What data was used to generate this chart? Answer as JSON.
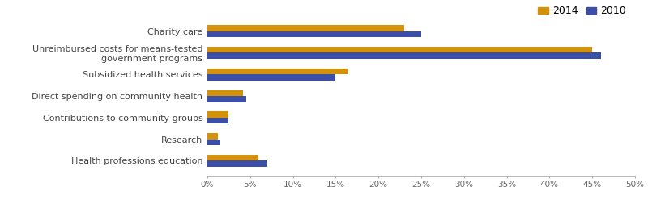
{
  "categories": [
    "Health professions education",
    "Research",
    "Contributions to community groups",
    "Direct spending on community health",
    "Subsidized health services",
    "Unreimbursed costs for means-tested\ngovernment programs",
    "Charity care"
  ],
  "values_2014": [
    6.0,
    1.2,
    2.5,
    4.2,
    16.5,
    45.0,
    23.0
  ],
  "values_2010": [
    7.0,
    1.5,
    2.5,
    4.5,
    15.0,
    46.0,
    25.0
  ],
  "color_2014": "#D4920A",
  "color_2010": "#3B4EA8",
  "xlim": [
    0,
    50
  ],
  "xticks": [
    0,
    5,
    10,
    15,
    20,
    25,
    30,
    35,
    40,
    45,
    50
  ],
  "xticklabels": [
    "0%",
    "5%",
    "10%",
    "15%",
    "20%",
    "25%",
    "30%",
    "35%",
    "40%",
    "45%",
    "50%"
  ],
  "background_color": "#ffffff",
  "legend_2014": "2014",
  "legend_2010": "2010",
  "bar_height": 0.28,
  "fontsize_labels": 8.0,
  "fontsize_ticks": 7.5,
  "fontsize_legend": 9
}
